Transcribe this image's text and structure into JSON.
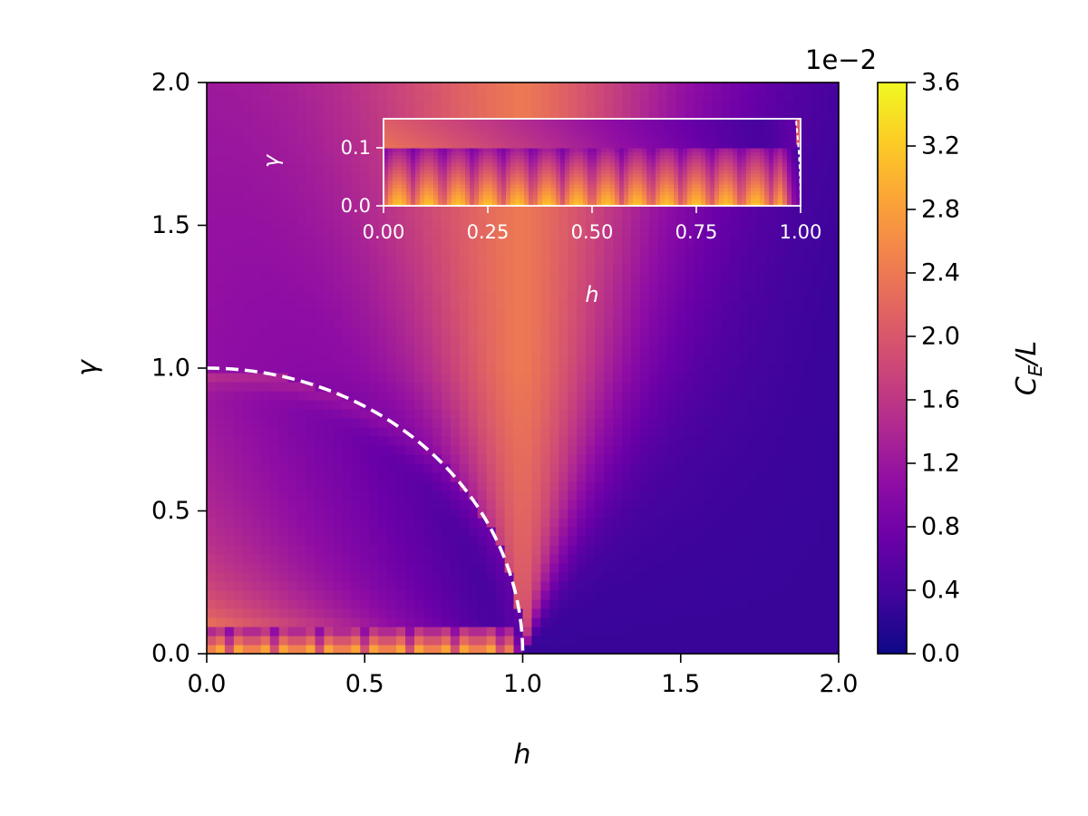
{
  "chart_data": {
    "type": "heatmap",
    "colormap": "plasma",
    "main": {
      "xlabel": "h",
      "ylabel": "γ",
      "xlim": [
        0,
        2
      ],
      "ylim": [
        0,
        2
      ],
      "x_ticks": [
        "0.0",
        "0.5",
        "1.0",
        "1.5",
        "2.0"
      ],
      "y_ticks": [
        "0.0",
        "0.5",
        "1.0",
        "1.5",
        "2.0"
      ],
      "x_tick_values": [
        0,
        0.5,
        1,
        1.5,
        2
      ],
      "y_tick_values": [
        0,
        0.5,
        1,
        1.5,
        2
      ],
      "dashed_boundary": {
        "equation": "h^2 + γ^2 = 1",
        "h_range": [
          0,
          1
        ],
        "color": "#ffffff"
      },
      "features": {
        "left_low_gamma_max": 0.032,
        "right_vertex_max": 0.02,
        "inner_min": 0.002,
        "outer_min": 0.003
      }
    },
    "inset": {
      "xlabel": "h",
      "ylabel": "γ",
      "xlim": [
        0,
        1
      ],
      "ylim": [
        0,
        0.15
      ],
      "x_ticks": [
        "0.00",
        "0.25",
        "0.50",
        "0.75",
        "1.00"
      ],
      "y_ticks": [
        "0.0",
        "0.1"
      ],
      "x_tick_values": [
        0,
        0.25,
        0.5,
        0.75,
        1
      ],
      "y_tick_values": [
        0,
        0.1
      ]
    },
    "colorbar": {
      "label": "C_E/L",
      "label_main": "C",
      "label_sub": "E",
      "label_tail": "/L",
      "offset_text": "1e−2",
      "range": [
        0,
        3.6
      ],
      "ticks": [
        "0.0",
        "0.4",
        "0.8",
        "1.2",
        "1.6",
        "2.0",
        "2.4",
        "2.8",
        "3.2",
        "3.6"
      ],
      "tick_values": [
        0,
        0.4,
        0.8,
        1.2,
        1.6,
        2.0,
        2.4,
        2.8,
        3.2,
        3.6
      ]
    }
  }
}
